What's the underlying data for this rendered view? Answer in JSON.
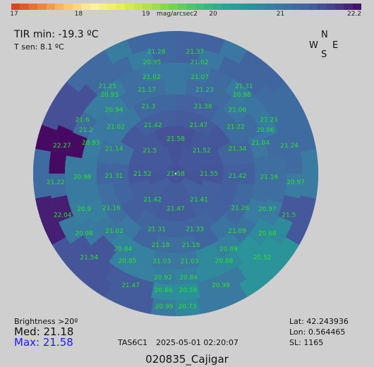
{
  "colorbar": {
    "ticks": [
      {
        "label": "17",
        "pos": 0.0
      },
      {
        "label": "18",
        "pos": 0.1923
      },
      {
        "label": "19",
        "pos": 0.3846
      },
      {
        "label": "20",
        "pos": 0.5769
      },
      {
        "label": "21",
        "pos": 0.7692
      },
      {
        "label": "22.2",
        "pos": 1.0
      }
    ],
    "unit": "mag/arcsec2",
    "min": 17,
    "max": 22.2
  },
  "readouts": {
    "tir": "TIR min: -19.3 ºC",
    "tsen": "T sen: 8.1 ºC",
    "brightness_label": "Brightness >20º",
    "med": "Med: 21.18",
    "max": "Max: 21.58",
    "sensor": "TAS6C1",
    "datetime": "2025-05-01   02:20:07",
    "lat": "Lat: 42.243936",
    "lon": "Lon: 0.564465",
    "sl": "SL:  1165",
    "station": "020835_Cajigar"
  },
  "compass": {
    "n": "N",
    "w": "W",
    "e": "E",
    "s": "S"
  },
  "sky_map": {
    "readings": [
      {
        "v": "21.37",
        "az": -9,
        "alt": 12
      },
      {
        "v": "21.28",
        "az": 9,
        "alt": 12
      },
      {
        "v": "21.02",
        "az": -12,
        "alt": 18
      },
      {
        "v": "20.95",
        "az": 12,
        "alt": 18
      },
      {
        "v": "21.31",
        "az": -38,
        "alt": 20
      },
      {
        "v": "21.25",
        "az": 38,
        "alt": 20
      },
      {
        "v": "21.07",
        "az": -14,
        "alt": 27
      },
      {
        "v": "21.02",
        "az": 14,
        "alt": 27
      },
      {
        "v": "20.98",
        "az": -40,
        "alt": 25
      },
      {
        "v": "20.93",
        "az": 40,
        "alt": 25
      },
      {
        "v": "21.23",
        "az": -19,
        "alt": 34
      },
      {
        "v": "21.17",
        "az": 19,
        "alt": 34
      },
      {
        "v": "21.06",
        "az": -44,
        "alt": 34
      },
      {
        "v": "20.94",
        "az": 44,
        "alt": 34
      },
      {
        "v": "21.21",
        "az": -60,
        "alt": 22
      },
      {
        "v": "21.6",
        "az": 60,
        "alt": 22
      },
      {
        "v": "21.38",
        "az": -22,
        "alt": 44
      },
      {
        "v": "21.3",
        "az": 22,
        "alt": 44
      },
      {
        "v": "20.96",
        "az": -64,
        "alt": 27
      },
      {
        "v": "21.2",
        "az": 64,
        "alt": 27
      },
      {
        "v": "21.22",
        "az": -52,
        "alt": 42
      },
      {
        "v": "21.02",
        "az": 52,
        "alt": 42
      },
      {
        "v": "21.47",
        "az": -25,
        "alt": 56
      },
      {
        "v": "21.42",
        "az": 25,
        "alt": 56
      },
      {
        "v": "21.24",
        "az": -76,
        "alt": 16
      },
      {
        "v": "22.27",
        "az": 76,
        "alt": 16
      },
      {
        "v": "21.04",
        "az": -70,
        "alt": 33
      },
      {
        "v": "20.93",
        "az": 70,
        "alt": 33
      },
      {
        "v": "21.34",
        "az": -68,
        "alt": 48
      },
      {
        "v": "21.14",
        "az": 68,
        "alt": 48
      },
      {
        "v": "21.52",
        "az": -48,
        "alt": 68
      },
      {
        "v": "21.5",
        "az": 48,
        "alt": 68
      },
      {
        "v": "21.58",
        "az": 0,
        "alt": 68
      },
      {
        "v": "20.97",
        "az": -94,
        "alt": 14
      },
      {
        "v": "21.22",
        "az": 94,
        "alt": 14
      },
      {
        "v": "21.16",
        "az": -92,
        "alt": 31
      },
      {
        "v": "20.98",
        "az": 92,
        "alt": 31
      },
      {
        "v": "21.42",
        "az": -92,
        "alt": 51
      },
      {
        "v": "21.31",
        "az": 92,
        "alt": 51
      },
      {
        "v": "21.55",
        "az": -90,
        "alt": 69
      },
      {
        "v": "21.52",
        "az": 90,
        "alt": 69
      },
      {
        "v": "21.58",
        "az": 0,
        "alt": 90
      },
      {
        "v": "21.5",
        "az": -110,
        "alt": 14
      },
      {
        "v": "22.04",
        "az": 110,
        "alt": 14
      },
      {
        "v": "20.97",
        "az": -111,
        "alt": 28
      },
      {
        "v": "20.9",
        "az": 111,
        "alt": 28
      },
      {
        "v": "21.26",
        "az": -118,
        "alt": 44
      },
      {
        "v": "21.16",
        "az": 118,
        "alt": 44
      },
      {
        "v": "21.41",
        "az": -138,
        "alt": 68
      },
      {
        "v": "21.42",
        "az": 138,
        "alt": 68
      },
      {
        "v": "21.47",
        "az": 180,
        "alt": 68
      },
      {
        "v": "20.68",
        "az": -123,
        "alt": 21
      },
      {
        "v": "20.98",
        "az": 123,
        "alt": 21
      },
      {
        "v": "21.09",
        "az": -133,
        "alt": 37
      },
      {
        "v": "21.02",
        "az": 133,
        "alt": 37
      },
      {
        "v": "21.33",
        "az": -161,
        "alt": 53
      },
      {
        "v": "21.31",
        "az": 161,
        "alt": 53
      },
      {
        "v": "20.52",
        "az": -134,
        "alt": 14
      },
      {
        "v": "21.54",
        "az": 134,
        "alt": 14
      },
      {
        "v": "20.89",
        "az": -145,
        "alt": 32
      },
      {
        "v": "20.84",
        "az": 145,
        "alt": 32
      },
      {
        "v": "21.18",
        "az": -168,
        "alt": 44
      },
      {
        "v": "21.18",
        "az": 168,
        "alt": 44
      },
      {
        "v": "20.68",
        "az": -151,
        "alt": 27
      },
      {
        "v": "20.85",
        "az": 151,
        "alt": 27
      },
      {
        "v": "21.03",
        "az": -171,
        "alt": 34
      },
      {
        "v": "21.03",
        "az": 171,
        "alt": 34
      },
      {
        "v": "20.99",
        "az": -158,
        "alt": 14
      },
      {
        "v": "21.47",
        "az": 158,
        "alt": 14
      },
      {
        "v": "20.84",
        "az": -173,
        "alt": 24
      },
      {
        "v": "20.92",
        "az": 173,
        "alt": 24
      },
      {
        "v": "20.59",
        "az": -174,
        "alt": 16
      },
      {
        "v": "20.66",
        "az": 174,
        "alt": 16
      },
      {
        "v": "20.73",
        "az": -175,
        "alt": 6
      },
      {
        "v": "20.99",
        "az": 175,
        "alt": 6
      }
    ]
  }
}
